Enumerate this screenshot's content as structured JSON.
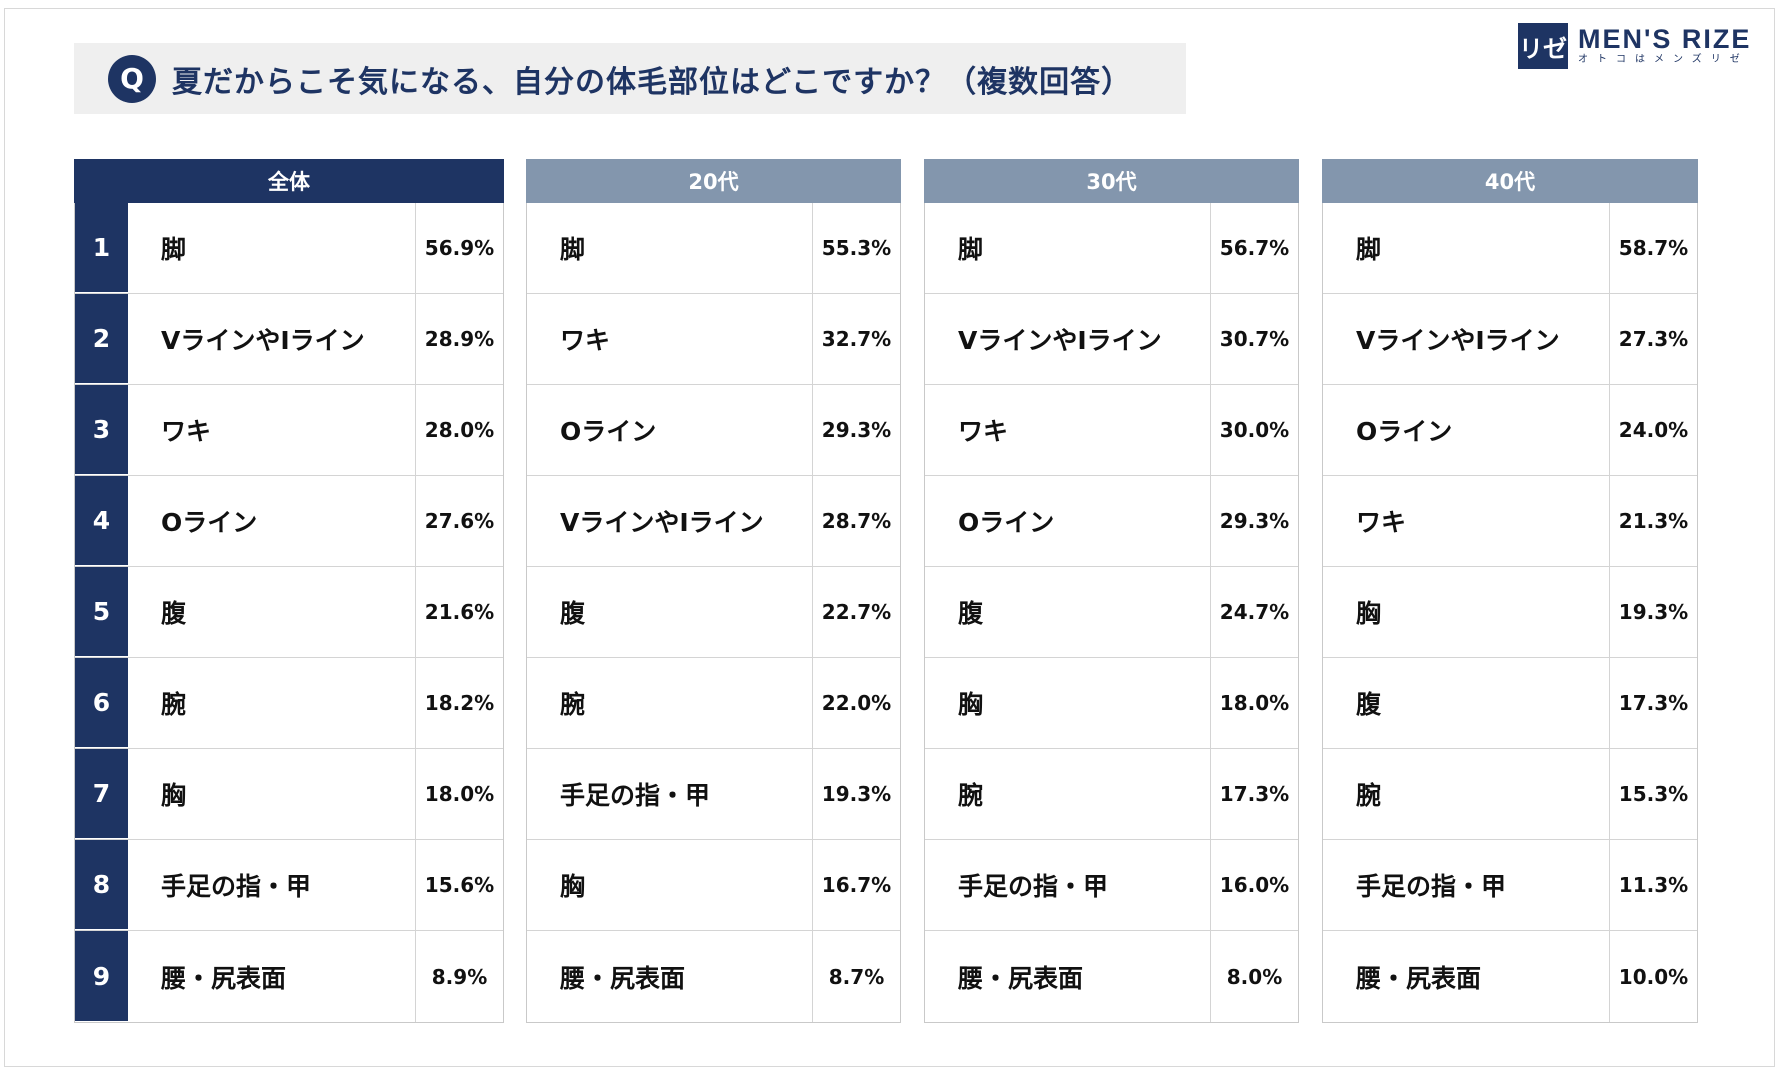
{
  "question": {
    "badge": "Q",
    "text": "夏だからこそ気になる、自分の体毛部位はどこですか？（複数回答）"
  },
  "logo": {
    "mark": "リゼ",
    "main": "MEN'S RIZE",
    "sub": "オトコはメンズリゼ"
  },
  "colors": {
    "navy": "#1e3463",
    "header_light": "#8396ad",
    "question_bg": "#efefef"
  },
  "chart_data": {
    "type": "table",
    "ranks": [
      "1",
      "2",
      "3",
      "4",
      "5",
      "6",
      "7",
      "8",
      "9"
    ],
    "groups": [
      {
        "name": "全体",
        "items": [
          "脚",
          "VラインやIライン",
          "ワキ",
          "Oライン",
          "腹",
          "腕",
          "胸",
          "手足の指・甲",
          "腰・尻表面"
        ],
        "values": [
          "56.9%",
          "28.9%",
          "28.0%",
          "27.6%",
          "21.6%",
          "18.2%",
          "18.0%",
          "15.6%",
          "8.9%"
        ]
      },
      {
        "name": "20代",
        "items": [
          "脚",
          "ワキ",
          "Oライン",
          "VラインやIライン",
          "腹",
          "腕",
          "手足の指・甲",
          "胸",
          "腰・尻表面"
        ],
        "values": [
          "55.3%",
          "32.7%",
          "29.3%",
          "28.7%",
          "22.7%",
          "22.0%",
          "19.3%",
          "16.7%",
          "8.7%"
        ]
      },
      {
        "name": "30代",
        "items": [
          "脚",
          "VラインやIライン",
          "ワキ",
          "Oライン",
          "腹",
          "胸",
          "腕",
          "手足の指・甲",
          "腰・尻表面"
        ],
        "values": [
          "56.7%",
          "30.7%",
          "30.0%",
          "29.3%",
          "24.7%",
          "18.0%",
          "17.3%",
          "16.0%",
          "8.0%"
        ]
      },
      {
        "name": "40代",
        "items": [
          "脚",
          "VラインやIライン",
          "Oライン",
          "ワキ",
          "胸",
          "腹",
          "腕",
          "手足の指・甲",
          "腰・尻表面"
        ],
        "values": [
          "58.7%",
          "27.3%",
          "24.0%",
          "21.3%",
          "19.3%",
          "17.3%",
          "15.3%",
          "11.3%",
          "10.0%"
        ]
      }
    ]
  }
}
